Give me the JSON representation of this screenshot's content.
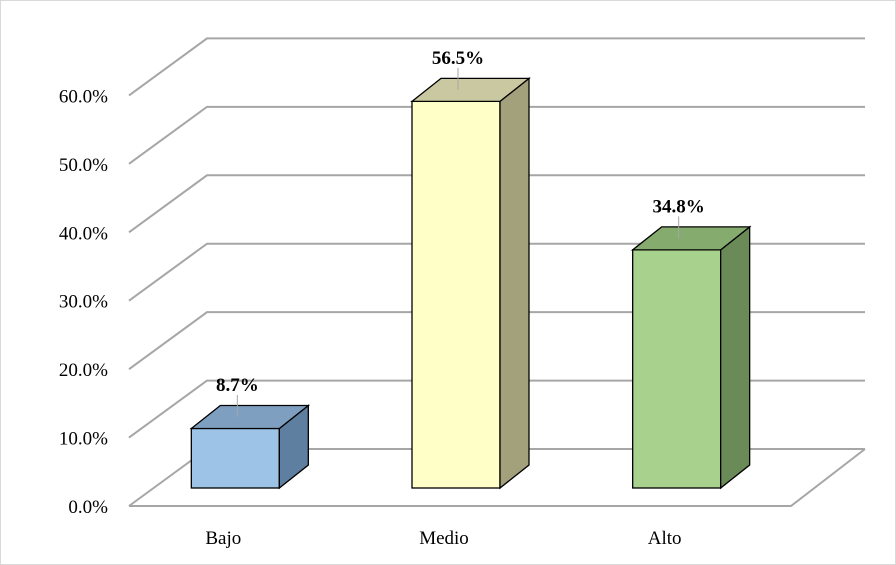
{
  "chart_data": {
    "type": "bar",
    "style": "3d-column",
    "categories": [
      "Bajo",
      "Medio",
      "Alto"
    ],
    "values": [
      8.7,
      56.5,
      34.8
    ],
    "data_labels": [
      "8.7%",
      "56.5%",
      "34.8%"
    ],
    "y_ticks": [
      "0.0%",
      "10.0%",
      "20.0%",
      "30.0%",
      "40.0%",
      "50.0%",
      "60.0%"
    ],
    "ylim": [
      0,
      60
    ],
    "grid": true,
    "legend": "none",
    "colors": {
      "Bajo": {
        "front": "#9dc3e6",
        "side": "#5f7fa0",
        "top": "#7f9fc0"
      },
      "Medio": {
        "front": "#ffffc8",
        "side": "#a3a07c",
        "top": "#c9c8a0"
      },
      "Alto": {
        "front": "#a9d18e",
        "side": "#6a8a58",
        "top": "#86ab6e"
      }
    }
  }
}
